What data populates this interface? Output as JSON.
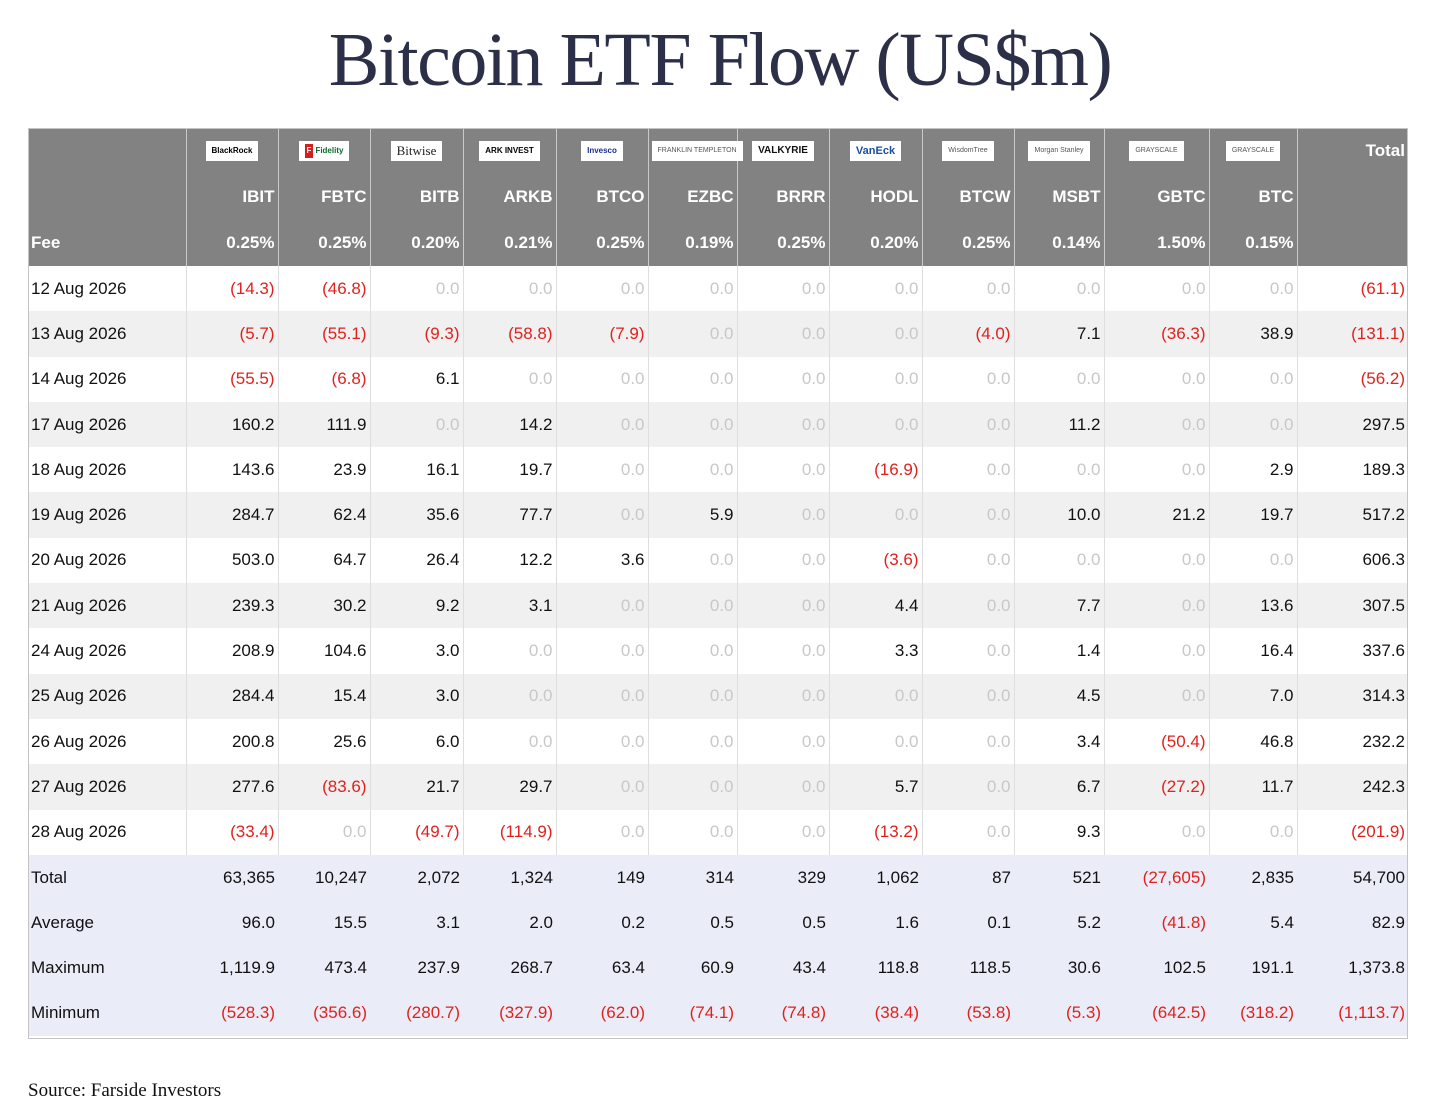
{
  "title": "Bitcoin ETF Flow (US$m)",
  "source": "Source: Farside Investors",
  "header": {
    "issuers": [
      {
        "logo_text": "BlackRock",
        "icon": "blackrock-logo"
      },
      {
        "logo_text": "Fidelity",
        "icon": "fidelity-logo"
      },
      {
        "logo_text": "Bitwise",
        "icon": "bitwise-logo"
      },
      {
        "logo_text": "ARK INVEST",
        "icon": "ark-invest-logo"
      },
      {
        "logo_text": "Invesco",
        "icon": "invesco-logo"
      },
      {
        "logo_text": "FRANKLIN TEMPLETON",
        "icon": "franklin-templeton-logo"
      },
      {
        "logo_text": "VALKYRIE",
        "icon": "valkyrie-logo"
      },
      {
        "logo_text": "VanEck",
        "icon": "vaneck-logo"
      },
      {
        "logo_text": "WisdomTree",
        "icon": "wisdomtree-logo"
      },
      {
        "logo_text": "Morgan Stanley",
        "icon": "morgan-stanley-logo"
      },
      {
        "logo_text": "GRAYSCALE",
        "icon": "grayscale-logo"
      },
      {
        "logo_text": "GRAYSCALE",
        "icon": "grayscale-logo"
      }
    ],
    "total_label": "Total",
    "tickers": [
      "IBIT",
      "FBTC",
      "BITB",
      "ARKB",
      "BTCO",
      "EZBC",
      "BRRR",
      "HODL",
      "BTCW",
      "MSBT",
      "GBTC",
      "BTC"
    ],
    "fee_label": "Fee",
    "fees": [
      "0.25%",
      "0.25%",
      "0.20%",
      "0.21%",
      "0.25%",
      "0.19%",
      "0.25%",
      "0.20%",
      "0.25%",
      "0.14%",
      "1.50%",
      "0.15%"
    ]
  },
  "rows": [
    {
      "date": "12 Aug 2026",
      "values": [
        "(14.3)",
        "(46.8)",
        "0.0",
        "0.0",
        "0.0",
        "0.0",
        "0.0",
        "0.0",
        "0.0",
        "0.0",
        "0.0",
        "0.0"
      ],
      "total": "(61.1)"
    },
    {
      "date": "13 Aug 2026",
      "values": [
        "(5.7)",
        "(55.1)",
        "(9.3)",
        "(58.8)",
        "(7.9)",
        "0.0",
        "0.0",
        "0.0",
        "(4.0)",
        "7.1",
        "(36.3)",
        "38.9"
      ],
      "total": "(131.1)"
    },
    {
      "date": "14 Aug 2026",
      "values": [
        "(55.5)",
        "(6.8)",
        "6.1",
        "0.0",
        "0.0",
        "0.0",
        "0.0",
        "0.0",
        "0.0",
        "0.0",
        "0.0",
        "0.0"
      ],
      "total": "(56.2)"
    },
    {
      "date": "17 Aug 2026",
      "values": [
        "160.2",
        "111.9",
        "0.0",
        "14.2",
        "0.0",
        "0.0",
        "0.0",
        "0.0",
        "0.0",
        "11.2",
        "0.0",
        "0.0"
      ],
      "total": "297.5"
    },
    {
      "date": "18 Aug 2026",
      "values": [
        "143.6",
        "23.9",
        "16.1",
        "19.7",
        "0.0",
        "0.0",
        "0.0",
        "(16.9)",
        "0.0",
        "0.0",
        "0.0",
        "2.9"
      ],
      "total": "189.3"
    },
    {
      "date": "19 Aug 2026",
      "values": [
        "284.7",
        "62.4",
        "35.6",
        "77.7",
        "0.0",
        "5.9",
        "0.0",
        "0.0",
        "0.0",
        "10.0",
        "21.2",
        "19.7"
      ],
      "total": "517.2"
    },
    {
      "date": "20 Aug 2026",
      "values": [
        "503.0",
        "64.7",
        "26.4",
        "12.2",
        "3.6",
        "0.0",
        "0.0",
        "(3.6)",
        "0.0",
        "0.0",
        "0.0",
        "0.0"
      ],
      "total": "606.3"
    },
    {
      "date": "21 Aug 2026",
      "values": [
        "239.3",
        "30.2",
        "9.2",
        "3.1",
        "0.0",
        "0.0",
        "0.0",
        "4.4",
        "0.0",
        "7.7",
        "0.0",
        "13.6"
      ],
      "total": "307.5"
    },
    {
      "date": "24 Aug 2026",
      "values": [
        "208.9",
        "104.6",
        "3.0",
        "0.0",
        "0.0",
        "0.0",
        "0.0",
        "3.3",
        "0.0",
        "1.4",
        "0.0",
        "16.4"
      ],
      "total": "337.6"
    },
    {
      "date": "25 Aug 2026",
      "values": [
        "284.4",
        "15.4",
        "3.0",
        "0.0",
        "0.0",
        "0.0",
        "0.0",
        "0.0",
        "0.0",
        "4.5",
        "0.0",
        "7.0"
      ],
      "total": "314.3"
    },
    {
      "date": "26 Aug 2026",
      "values": [
        "200.8",
        "25.6",
        "6.0",
        "0.0",
        "0.0",
        "0.0",
        "0.0",
        "0.0",
        "0.0",
        "3.4",
        "(50.4)",
        "46.8"
      ],
      "total": "232.2"
    },
    {
      "date": "27 Aug 2026",
      "values": [
        "277.6",
        "(83.6)",
        "21.7",
        "29.7",
        "0.0",
        "0.0",
        "0.0",
        "5.7",
        "0.0",
        "6.7",
        "(27.2)",
        "11.7"
      ],
      "total": "242.3"
    },
    {
      "date": "28 Aug 2026",
      "values": [
        "(33.4)",
        "0.0",
        "(49.7)",
        "(114.9)",
        "0.0",
        "0.0",
        "0.0",
        "(13.2)",
        "0.0",
        "9.3",
        "0.0",
        "0.0"
      ],
      "total": "(201.9)"
    }
  ],
  "stats": [
    {
      "label": "Total",
      "values": [
        "63,365",
        "10,247",
        "2,072",
        "1,324",
        "149",
        "314",
        "329",
        "1,062",
        "87",
        "521",
        "(27,605)",
        "2,835"
      ],
      "total": "54,700"
    },
    {
      "label": "Average",
      "values": [
        "96.0",
        "15.5",
        "3.1",
        "2.0",
        "0.2",
        "0.5",
        "0.5",
        "1.6",
        "0.1",
        "5.2",
        "(41.8)",
        "5.4"
      ],
      "total": "82.9"
    },
    {
      "label": "Maximum",
      "values": [
        "1,119.9",
        "473.4",
        "237.9",
        "268.7",
        "63.4",
        "60.9",
        "43.4",
        "118.8",
        "118.5",
        "30.6",
        "102.5",
        "191.1"
      ],
      "total": "1,373.8"
    },
    {
      "label": "Minimum",
      "values": [
        "(528.3)",
        "(356.6)",
        "(280.7)",
        "(327.9)",
        "(62.0)",
        "(74.1)",
        "(74.8)",
        "(38.4)",
        "(53.8)",
        "(5.3)",
        "(642.5)",
        "(318.2)"
      ],
      "total": "(1,113.7)"
    }
  ]
}
